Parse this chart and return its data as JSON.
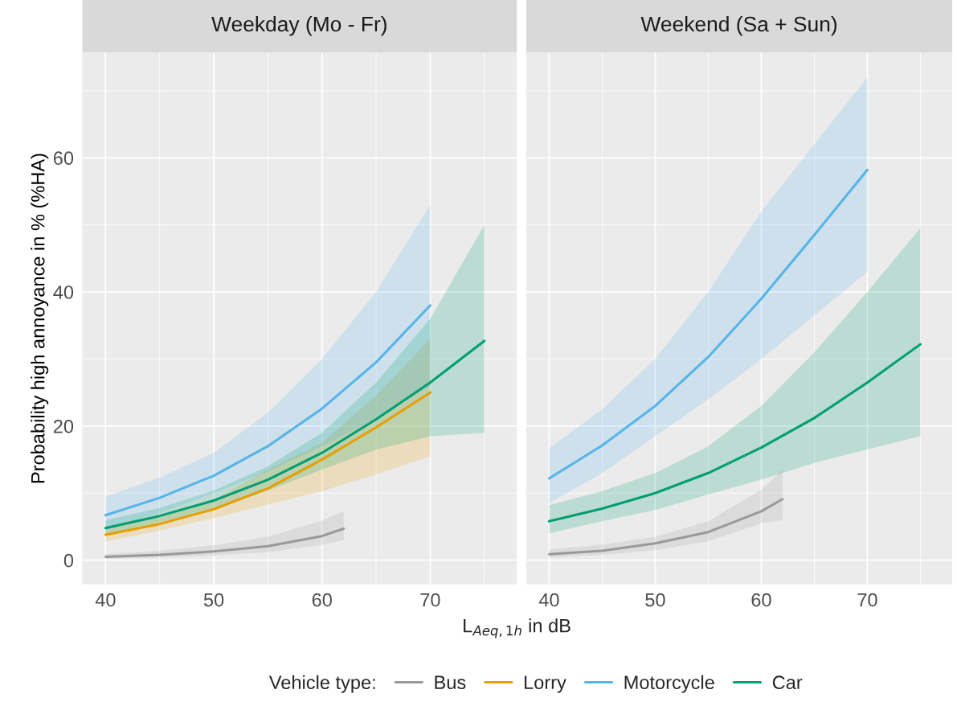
{
  "chart_data": [
    {
      "type": "line",
      "title": "Weekday (Mo - Fr)",
      "xlabel": "L$_{Aeq,1h}$ in dB",
      "ylabel": "Probability high annoyance in % (%HA)",
      "legend_title": "Vehicle type:",
      "legend": "bottom",
      "grid": true,
      "xlim": [
        37.85,
        78.0
      ],
      "ylim": [
        -3.6,
        75.7
      ],
      "xticks": [
        40,
        50,
        60,
        70
      ],
      "yticks": [
        0,
        20,
        40,
        60
      ],
      "series": [
        {
          "name": "Bus",
          "color": "#999999",
          "x": [
            40,
            45,
            50,
            55,
            60,
            62
          ],
          "values": [
            0.5,
            0.8,
            1.3,
            2.1,
            3.6,
            4.7
          ],
          "lower": [
            0.2,
            0.4,
            0.7,
            1.2,
            2.3,
            3.0
          ],
          "upper": [
            0.9,
            1.4,
            2.2,
            3.5,
            5.9,
            7.3
          ]
        },
        {
          "name": "Lorry",
          "color": "#e69f00",
          "x": [
            40,
            45,
            50,
            55,
            60,
            65,
            70
          ],
          "values": [
            3.8,
            5.4,
            7.6,
            10.7,
            15.0,
            19.8,
            25.0
          ],
          "lower": [
            2.8,
            4.4,
            6.3,
            8.3,
            10.3,
            12.8,
            15.5
          ],
          "upper": [
            5.0,
            6.8,
            9.0,
            13.5,
            17.5,
            24.5,
            33.0
          ]
        },
        {
          "name": "Motorcycle",
          "color": "#56b4e9",
          "x": [
            40,
            45,
            50,
            55,
            60,
            65,
            70
          ],
          "values": [
            6.7,
            9.3,
            12.6,
            17.0,
            22.6,
            29.5,
            38.0
          ],
          "lower": [
            4.5,
            7.0,
            10.0,
            13.2,
            17.0,
            21.0,
            26.0
          ],
          "upper": [
            9.5,
            12.3,
            16.0,
            22.0,
            30.0,
            40.0,
            53.0
          ]
        },
        {
          "name": "Car",
          "color": "#009e73",
          "x": [
            40,
            45,
            50,
            55,
            60,
            65,
            70,
            75
          ],
          "values": [
            4.8,
            6.6,
            8.9,
            12.0,
            16.0,
            21.0,
            26.5,
            32.7
          ],
          "lower": [
            3.8,
            5.6,
            7.6,
            10.4,
            13.5,
            16.5,
            18.5,
            19.0
          ],
          "upper": [
            6.0,
            7.8,
            10.4,
            14.0,
            19.0,
            26.5,
            36.0,
            50.0
          ]
        }
      ]
    },
    {
      "type": "line",
      "title": "Weekend (Sa + Sun)",
      "grid": true,
      "tick_labels": "x",
      "xlim": [
        37.85,
        78.0
      ],
      "ylim": [
        -3.6,
        75.7
      ],
      "xticks": [
        40,
        50,
        60,
        70
      ],
      "yticks": [
        0,
        20,
        40,
        60
      ],
      "series": [
        {
          "name": "Bus",
          "color": "#999999",
          "x": [
            40,
            45,
            50,
            55,
            60,
            62
          ],
          "values": [
            0.9,
            1.4,
            2.5,
            4.2,
            7.3,
            9.1
          ],
          "lower": [
            0.4,
            0.8,
            1.5,
            2.8,
            5.5,
            6.0
          ],
          "upper": [
            1.6,
            2.3,
            3.5,
            5.8,
            10.5,
            13.5
          ]
        },
        {
          "name": "Motorcycle",
          "color": "#56b4e9",
          "x": [
            40,
            45,
            50,
            55,
            60,
            65,
            70
          ],
          "values": [
            12.2,
            17.1,
            23.0,
            30.3,
            39.0,
            48.5,
            58.2
          ],
          "lower": [
            8.5,
            13.0,
            18.5,
            24.0,
            30.0,
            36.5,
            43.0
          ],
          "upper": [
            16.7,
            22.5,
            30.0,
            40.0,
            52.0,
            62.0,
            72.0
          ]
        },
        {
          "name": "Car",
          "color": "#009e73",
          "x": [
            40,
            45,
            50,
            55,
            60,
            65,
            70,
            75
          ],
          "values": [
            5.8,
            7.7,
            10.0,
            13.0,
            16.8,
            21.2,
            26.5,
            32.2
          ],
          "lower": [
            4.0,
            5.8,
            7.5,
            9.8,
            12.0,
            14.5,
            16.5,
            18.5
          ],
          "upper": [
            8.2,
            10.3,
            13.0,
            17.0,
            23.0,
            31.0,
            40.0,
            49.5
          ]
        }
      ]
    }
  ]
}
